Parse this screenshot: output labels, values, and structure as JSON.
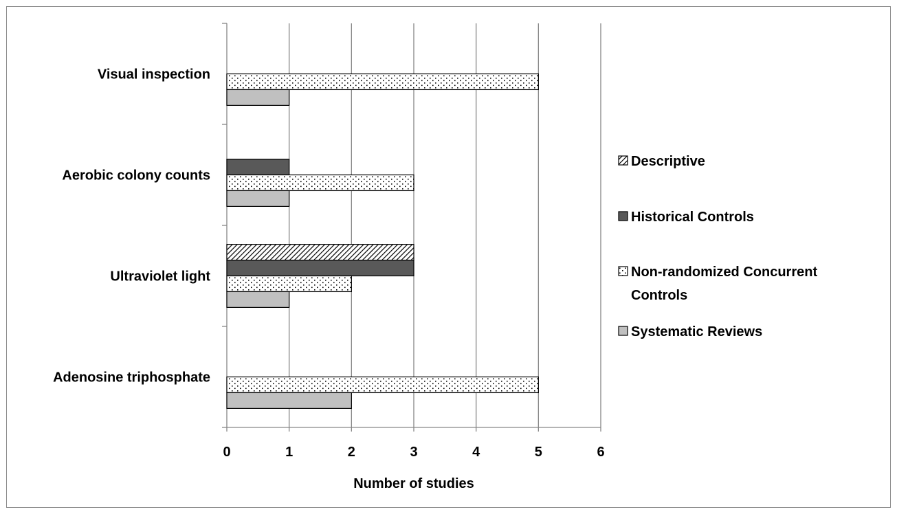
{
  "chart_data": {
    "type": "bar",
    "orientation": "horizontal",
    "categories": [
      "Visual inspection",
      "Aerobic colony counts",
      "Ultraviolet light",
      "Adenosine triphosphate"
    ],
    "series": [
      {
        "name": "Descriptive",
        "values": [
          0,
          0,
          3,
          0
        ],
        "pattern": "diagonal-hatch",
        "color": "#000000"
      },
      {
        "name": "Historical Controls",
        "values": [
          0,
          1,
          3,
          0
        ],
        "pattern": "solid",
        "color": "#595959"
      },
      {
        "name": "Non-randomized Concurrent Controls",
        "values": [
          5,
          3,
          2,
          5
        ],
        "pattern": "dots",
        "color": "#000000"
      },
      {
        "name": "Systematic Reviews",
        "values": [
          1,
          1,
          1,
          2
        ],
        "pattern": "solid",
        "color": "#c0c0c0"
      }
    ],
    "legend_labels": [
      "Descriptive",
      "Historical Controls",
      "Non-randomized Concurrent",
      "Controls",
      "Systematic Reviews"
    ],
    "xlim": [
      0,
      6
    ],
    "xticks": [
      "0",
      "1",
      "2",
      "3",
      "4",
      "5",
      "6"
    ],
    "xlabel": "Number of studies",
    "ylabel": "",
    "title": "",
    "grid": "vertical",
    "legend_position": "right"
  }
}
